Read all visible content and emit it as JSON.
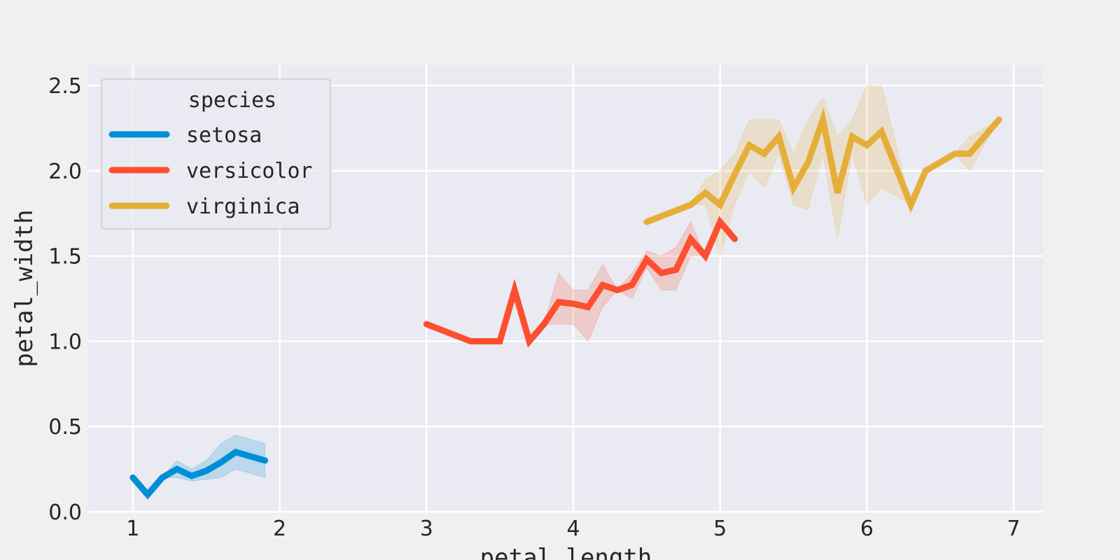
{
  "chart_data": {
    "type": "line",
    "title": "",
    "xlabel": "petal_length",
    "ylabel": "petal_width",
    "xlim": [
      0.7,
      7.2
    ],
    "ylim": [
      0.0,
      2.62
    ],
    "xticks": [
      1,
      2,
      3,
      4,
      5,
      6,
      7
    ],
    "yticks": [
      0.0,
      0.5,
      1.0,
      1.5,
      2.0,
      2.5
    ],
    "xtick_labels": [
      "1",
      "2",
      "3",
      "4",
      "5",
      "6",
      "7"
    ],
    "ytick_labels": [
      "0.0",
      "0.5",
      "1.0",
      "1.5",
      "2.0",
      "2.5"
    ],
    "grid": true,
    "legend": {
      "title": "species",
      "placement": "top-left",
      "entries": [
        "setosa",
        "versicolor",
        "virginica"
      ]
    },
    "colors": {
      "background": "#f0f0f0",
      "plot_area": "#eaeaf2",
      "grid": "#ffffff",
      "setosa": "#008fd5",
      "versicolor": "#fc4f30",
      "virginica": "#e5ae38"
    },
    "series": [
      {
        "name": "setosa",
        "color": "#008fd5",
        "x": [
          1.0,
          1.1,
          1.2,
          1.3,
          1.4,
          1.5,
          1.6,
          1.7,
          1.9
        ],
        "y": [
          0.2,
          0.1,
          0.2,
          0.25,
          0.21,
          0.24,
          0.29,
          0.35,
          0.3
        ],
        "ci_low": [
          0.2,
          0.1,
          0.2,
          0.2,
          0.18,
          0.19,
          0.2,
          0.25,
          0.2
        ],
        "ci_high": [
          0.2,
          0.1,
          0.2,
          0.3,
          0.25,
          0.3,
          0.4,
          0.45,
          0.4
        ]
      },
      {
        "name": "versicolor",
        "color": "#fc4f30",
        "x": [
          3.0,
          3.3,
          3.5,
          3.6,
          3.7,
          3.8,
          3.9,
          4.0,
          4.1,
          4.2,
          4.3,
          4.4,
          4.5,
          4.6,
          4.7,
          4.8,
          4.9,
          5.0,
          5.1
        ],
        "y": [
          1.1,
          1.0,
          1.0,
          1.3,
          1.0,
          1.1,
          1.23,
          1.22,
          1.2,
          1.33,
          1.3,
          1.33,
          1.48,
          1.4,
          1.42,
          1.6,
          1.5,
          1.7,
          1.6
        ],
        "ci_low": [
          1.1,
          1.0,
          1.0,
          1.3,
          1.0,
          1.1,
          1.1,
          1.1,
          1.0,
          1.2,
          1.3,
          1.25,
          1.43,
          1.3,
          1.3,
          1.5,
          1.5,
          1.7,
          1.6
        ],
        "ci_high": [
          1.1,
          1.0,
          1.0,
          1.3,
          1.0,
          1.1,
          1.4,
          1.3,
          1.3,
          1.45,
          1.3,
          1.4,
          1.53,
          1.5,
          1.55,
          1.7,
          1.5,
          1.7,
          1.6
        ]
      },
      {
        "name": "virginica",
        "color": "#e5ae38",
        "x": [
          4.5,
          4.8,
          4.9,
          5.0,
          5.1,
          5.2,
          5.3,
          5.4,
          5.5,
          5.6,
          5.7,
          5.8,
          5.9,
          6.0,
          6.1,
          6.3,
          6.4,
          6.6,
          6.7,
          6.9
        ],
        "y": [
          1.7,
          1.8,
          1.87,
          1.8,
          1.98,
          2.15,
          2.1,
          2.2,
          1.9,
          2.05,
          2.3,
          1.87,
          2.2,
          2.15,
          2.23,
          1.8,
          2.0,
          2.1,
          2.1,
          2.3
        ],
        "ci_low": [
          1.7,
          1.8,
          1.8,
          1.5,
          1.8,
          2.0,
          1.9,
          2.1,
          1.8,
          1.77,
          2.1,
          1.6,
          2.1,
          1.8,
          1.9,
          1.8,
          2.0,
          2.1,
          2.0,
          2.3
        ],
        "ci_high": [
          1.7,
          1.8,
          1.95,
          2.0,
          2.1,
          2.3,
          2.3,
          2.3,
          2.1,
          2.3,
          2.43,
          2.2,
          2.3,
          2.5,
          2.5,
          1.8,
          2.0,
          2.1,
          2.2,
          2.3
        ]
      }
    ]
  }
}
